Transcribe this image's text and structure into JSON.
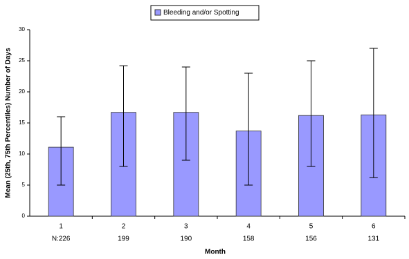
{
  "chart_data": {
    "type": "bar",
    "y_label": "Mean (25th, 75th Percentiles) Number of Days",
    "x_label": "Month",
    "categories": [
      "1",
      "2",
      "3",
      "4",
      "5",
      "6"
    ],
    "sample_sizes": [
      "N:226",
      "199",
      "190",
      "158",
      "156",
      "131"
    ],
    "series": [
      {
        "name": "Bleeding and/or Spotting",
        "color": "#9999ff",
        "values": [
          11.1,
          16.7,
          16.7,
          13.7,
          16.2,
          16.3
        ],
        "low": [
          5,
          8,
          9,
          5,
          8,
          6.2
        ],
        "high": [
          16,
          24.2,
          24,
          23,
          25,
          27
        ]
      }
    ],
    "ylim": [
      0,
      30
    ],
    "yticks": [
      0,
      5,
      10,
      15,
      20,
      25,
      30
    ],
    "grid": false
  }
}
